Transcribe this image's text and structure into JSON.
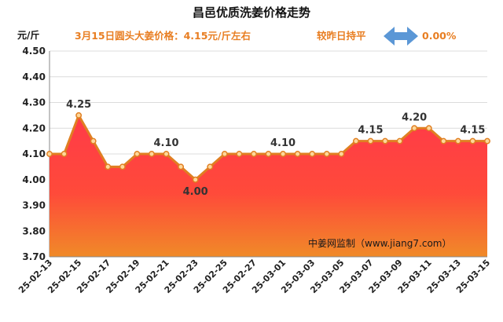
{
  "chart_data": {
    "type": "area",
    "title": "昌邑优质洗姜价格走势",
    "subtitle": "3月15日圆头大姜价格：4.15元/斤左右",
    "trend_text": "较昨日持平",
    "change_text": "0.00%",
    "ylabel": "元/斤",
    "ylim": [
      3.7,
      4.5
    ],
    "yticks": [
      "3.70",
      "3.80",
      "3.90",
      "4.00",
      "4.10",
      "4.20",
      "4.30",
      "4.40",
      "4.50"
    ],
    "x": [
      "25-02-13",
      "25-02-14",
      "25-02-15",
      "25-02-16",
      "25-02-17",
      "25-02-18",
      "25-02-19",
      "25-02-20",
      "25-02-21",
      "25-02-22",
      "25-02-23",
      "25-02-24",
      "25-02-25",
      "25-02-26",
      "25-02-27",
      "25-02-28",
      "25-03-01",
      "25-03-02",
      "25-03-03",
      "25-03-04",
      "25-03-05",
      "25-03-06",
      "25-03-07",
      "25-03-08",
      "25-03-09",
      "25-03-10",
      "25-03-11",
      "25-03-12",
      "25-03-13",
      "25-03-14",
      "25-03-15"
    ],
    "xtick_labels": [
      "25-02-13",
      "25-02-15",
      "25-02-17",
      "25-02-19",
      "25-02-21",
      "25-02-23",
      "25-02-25",
      "25-02-27",
      "25-03-01",
      "25-03-03",
      "25-03-05",
      "25-03-07",
      "25-03-09",
      "25-03-11",
      "25-03-13",
      "25-03-15"
    ],
    "values": [
      4.1,
      4.1,
      4.25,
      4.15,
      4.05,
      4.05,
      4.1,
      4.1,
      4.1,
      4.05,
      4.0,
      4.05,
      4.1,
      4.1,
      4.1,
      4.1,
      4.1,
      4.1,
      4.1,
      4.1,
      4.1,
      4.15,
      4.15,
      4.15,
      4.15,
      4.2,
      4.2,
      4.15,
      4.15,
      4.15,
      4.15
    ],
    "data_labels": [
      {
        "index": 2,
        "text": "4.25"
      },
      {
        "index": 8,
        "text": "4.10"
      },
      {
        "index": 10,
        "text": "4.00"
      },
      {
        "index": 16,
        "text": "4.10"
      },
      {
        "index": 22,
        "text": "4.15"
      },
      {
        "index": 25,
        "text": "4.20"
      },
      {
        "index": 29,
        "text": "4.15"
      }
    ],
    "grid": true,
    "watermark": "中姜网监制（www.jiang7.com）",
    "colors": {
      "fill_top": "#ff3a48",
      "fill_bottom": "#f08a28",
      "line": "#e07f22",
      "marker_fill": "#ffd79a",
      "grid": "#dcdcdc",
      "arrow": "#5b97d6",
      "subtitle": "#e87e22"
    }
  }
}
